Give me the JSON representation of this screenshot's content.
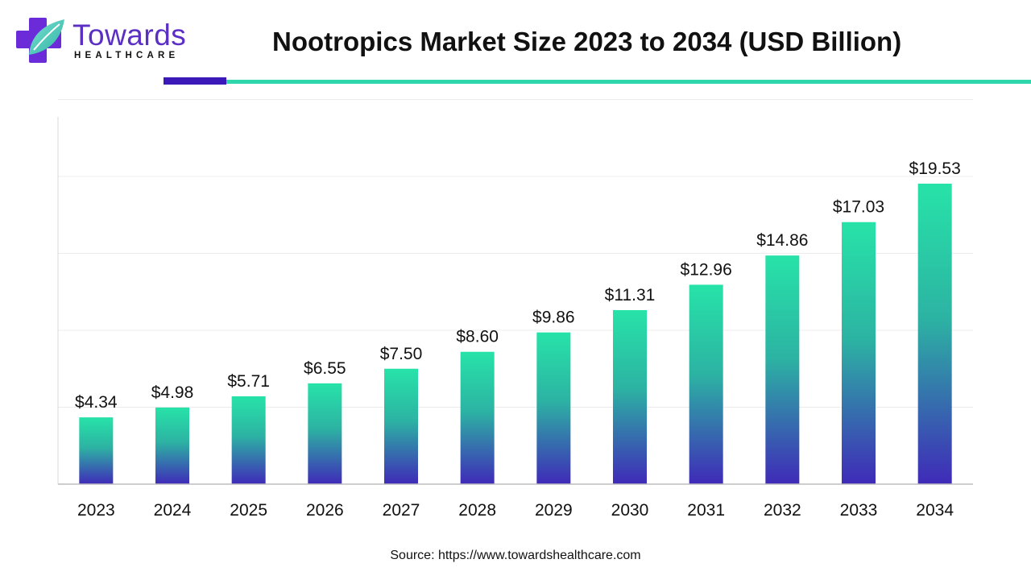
{
  "brand": {
    "name": "Towards",
    "tagline": "HEALTHCARE"
  },
  "colors": {
    "brand_purple": "#5b2fc4",
    "accent_dark": "#3b19b8",
    "accent_teal": "#2fd6ac",
    "bar_top": "#27e3a8",
    "bar_bottom": "#3f2ab8"
  },
  "chart_data": {
    "type": "bar",
    "title": "Nootropics Market Size 2023 to 2034 (USD Billion)",
    "categories": [
      "2023",
      "2024",
      "2025",
      "2026",
      "2027",
      "2028",
      "2029",
      "2030",
      "2031",
      "2032",
      "2033",
      "2034"
    ],
    "values": [
      4.34,
      4.98,
      5.71,
      6.55,
      7.5,
      8.6,
      9.86,
      11.31,
      12.96,
      14.86,
      17.03,
      19.53
    ],
    "value_labels": [
      "$4.34",
      "$4.98",
      "$5.71",
      "$6.55",
      "$7.50",
      "$8.60",
      "$9.86",
      "$11.31",
      "$12.96",
      "$14.86",
      "$17.03",
      "$19.53"
    ],
    "xlabel": "",
    "ylabel": "",
    "ylim": [
      0,
      25
    ],
    "grid": true,
    "legend": "none"
  },
  "source": "Source: https://www.towardshealthcare.com"
}
